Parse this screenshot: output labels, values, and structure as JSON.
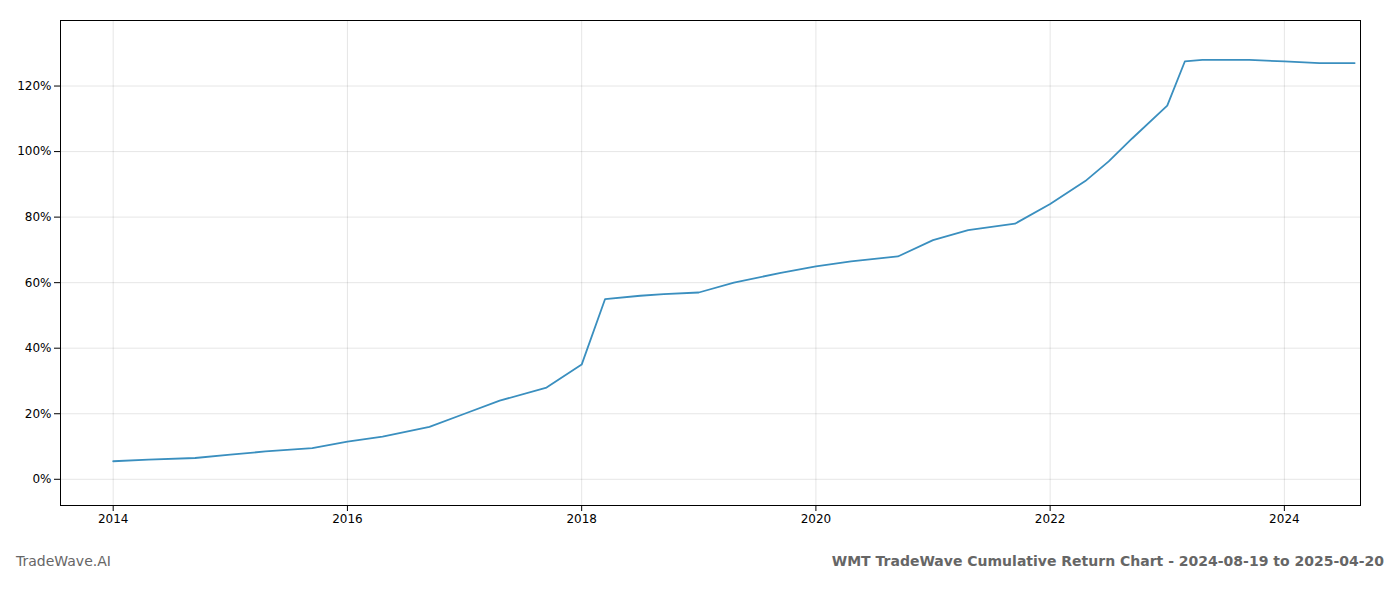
{
  "chart_data": {
    "type": "line",
    "title": "WMT TradeWave Cumulative Return Chart - 2024-08-19 to 2025-04-20",
    "annotations": [
      "TradeWave.AI"
    ],
    "color": "#3a8fbf",
    "grid": true,
    "xlim": [
      2013.55,
      2024.65
    ],
    "xticks": [
      2014,
      2016,
      2018,
      2020,
      2022,
      2024
    ],
    "ylim": [
      -8,
      140
    ],
    "yticks": [
      {
        "value": 0,
        "label": "0%"
      },
      {
        "value": 20,
        "label": "20%"
      },
      {
        "value": 40,
        "label": "40%"
      },
      {
        "value": 60,
        "label": "60%"
      },
      {
        "value": 80,
        "label": "80%"
      },
      {
        "value": 100,
        "label": "100%"
      },
      {
        "value": 120,
        "label": "120%"
      }
    ],
    "x": [
      2014.0,
      2014.3,
      2014.7,
      2015.0,
      2015.3,
      2015.7,
      2016.0,
      2016.3,
      2016.7,
      2017.0,
      2017.3,
      2017.7,
      2018.0,
      2018.2,
      2018.5,
      2018.7,
      2019.0,
      2019.3,
      2019.7,
      2020.0,
      2020.3,
      2020.7,
      2021.0,
      2021.3,
      2021.7,
      2022.0,
      2022.3,
      2022.5,
      2022.7,
      2023.0,
      2023.15,
      2023.3,
      2023.5,
      2023.7,
      2024.0,
      2024.3,
      2024.6
    ],
    "values": [
      5.5,
      6.0,
      6.5,
      7.5,
      8.5,
      9.5,
      11.5,
      13.0,
      16.0,
      20.0,
      24.0,
      28.0,
      35.0,
      55.0,
      56.0,
      56.5,
      57.0,
      60.0,
      63.0,
      65.0,
      66.5,
      68.0,
      73.0,
      76.0,
      78.0,
      84.0,
      91.0,
      97.0,
      104.0,
      114.0,
      127.5,
      128.0,
      128.0,
      128.0,
      127.5,
      127.0,
      127.0
    ]
  }
}
